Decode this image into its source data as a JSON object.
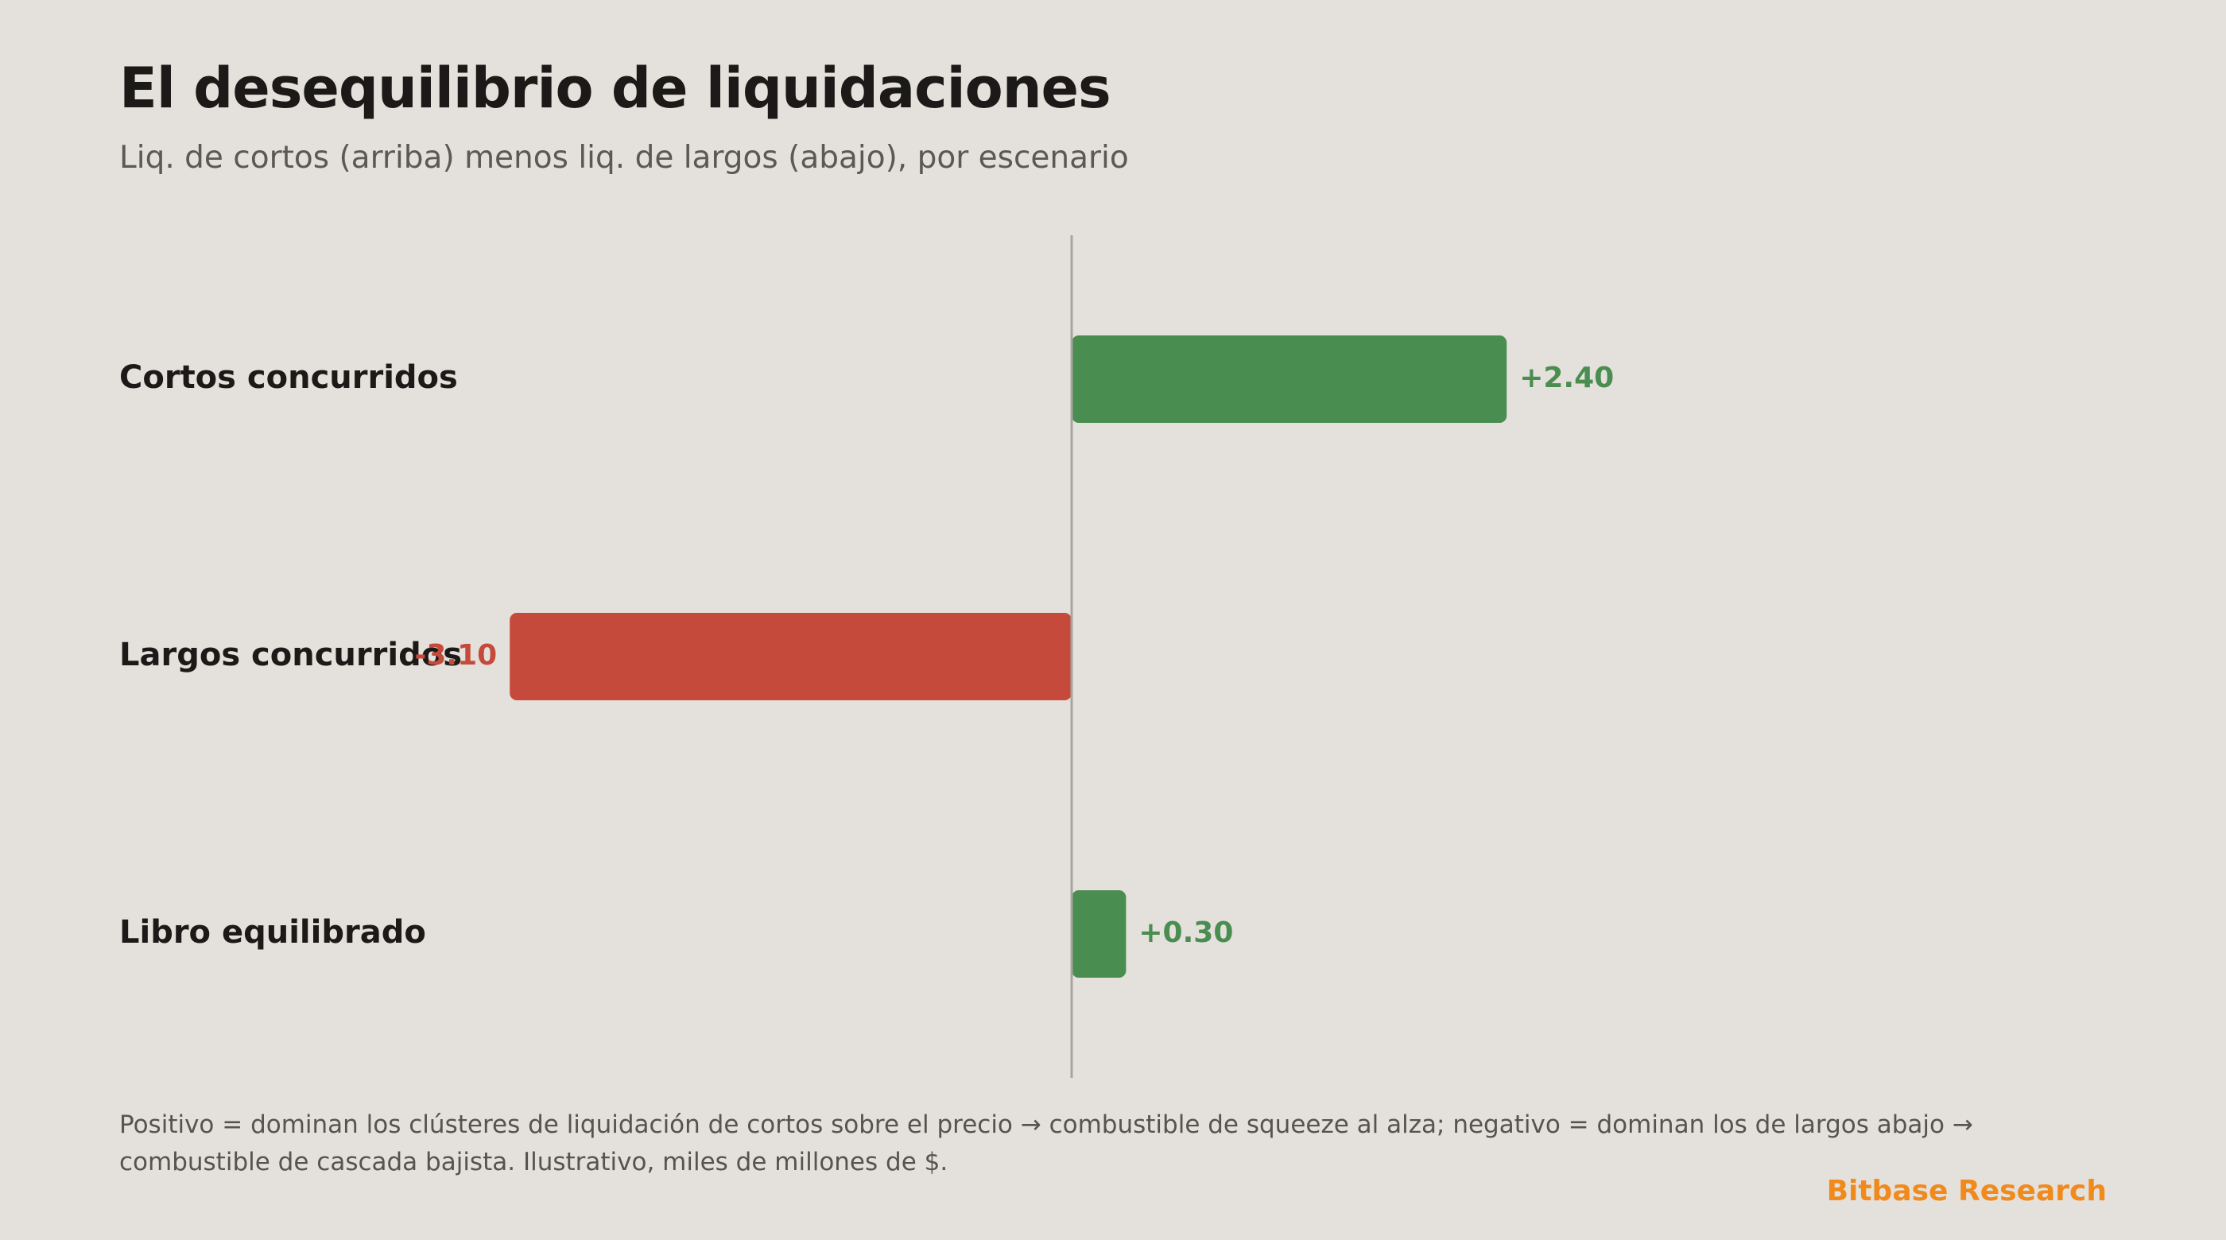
{
  "title": "El desequilibrio de liquidaciones",
  "subtitle": "Liq. de cortos (arriba) menos liq. de largos (abajo), por escenario",
  "note": "Positivo = dominan los clústeres de liquidación de cortos sobre el precio → combustible de squeeze al alza; negativo = dominan los de largos abajo → combustible de cascada bajista. Ilustrativo, miles de millones de $.",
  "brand": "Bitbase Research",
  "colors": {
    "positive": "#4a8d50",
    "negative": "#c64a3b",
    "baseline": "#a8a49f",
    "label": "#1c1a18",
    "brand": "#f08a1c"
  },
  "chart_data": {
    "type": "bar",
    "orientation": "horizontal",
    "categories": [
      "Cortos concurridos",
      "Largos concurridos",
      "Libro equilibrado"
    ],
    "values": [
      2.4,
      -3.1,
      0.3
    ],
    "value_labels": [
      "+2.40",
      "-3.10",
      "+0.30"
    ],
    "xlim": [
      -3.1,
      5.6
    ],
    "baseline": 0,
    "grid": false,
    "legend": "none"
  }
}
